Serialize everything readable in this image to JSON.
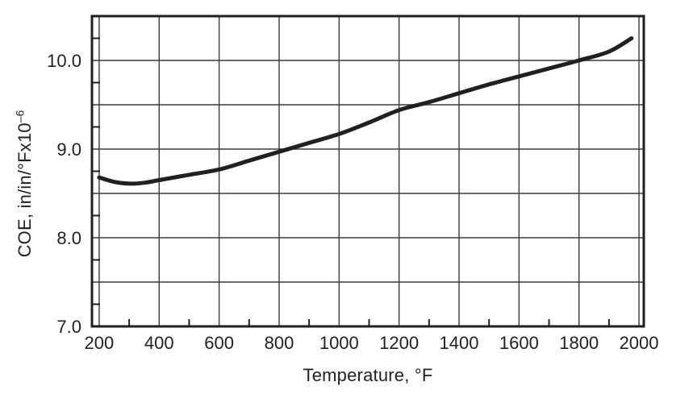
{
  "chart_data": {
    "type": "line",
    "title": "",
    "xlabel": "Temperature, °F",
    "ylabel": "COE, in/in/°Fx10⁻⁶",
    "ylabel_base": "COE, in/in/°Fx10",
    "ylabel_exponent": "–6",
    "xlim": [
      176,
      2016
    ],
    "ylim": [
      7.0,
      10.5
    ],
    "grid": true,
    "legend": "none",
    "x_major_gridlines": [
      200,
      400,
      600,
      800,
      1000,
      1200,
      1400,
      1600,
      1800,
      2000
    ],
    "x_tick_labels": [
      "200",
      "400",
      "600",
      "800",
      "1000",
      "1200",
      "1400",
      "1600",
      "1800",
      "2000"
    ],
    "x_minor_ticks": [
      300,
      500,
      700,
      900,
      1100,
      1300,
      1500,
      1700,
      1900
    ],
    "y_major_gridlines": [
      7.5,
      8.0,
      8.5,
      9.0,
      9.5,
      10.0
    ],
    "y_labeled_ticks": [
      7.0,
      8.0,
      9.0,
      10.0
    ],
    "y_tick_labels": [
      "7.0",
      "8.0",
      "9.0",
      "10.0"
    ],
    "y_minor_ticks": [
      7.25,
      7.75,
      8.25,
      8.75,
      9.25,
      9.75,
      10.25
    ],
    "series": [
      {
        "name": "COE",
        "x": [
          200,
          250,
          300,
          350,
          400,
          500,
          600,
          700,
          800,
          900,
          1000,
          1100,
          1200,
          1300,
          1400,
          1500,
          1600,
          1700,
          1800,
          1900,
          1975
        ],
        "y": [
          8.68,
          8.63,
          8.61,
          8.62,
          8.65,
          8.71,
          8.77,
          8.87,
          8.97,
          9.07,
          9.17,
          9.3,
          9.44,
          9.53,
          9.63,
          9.73,
          9.82,
          9.91,
          10.0,
          10.1,
          10.25
        ]
      }
    ],
    "colors": {
      "curve": "#231f20",
      "grid": "#3a3a3a",
      "frame": "#231f20",
      "background": "#ffffff",
      "text": "#231f20"
    }
  }
}
